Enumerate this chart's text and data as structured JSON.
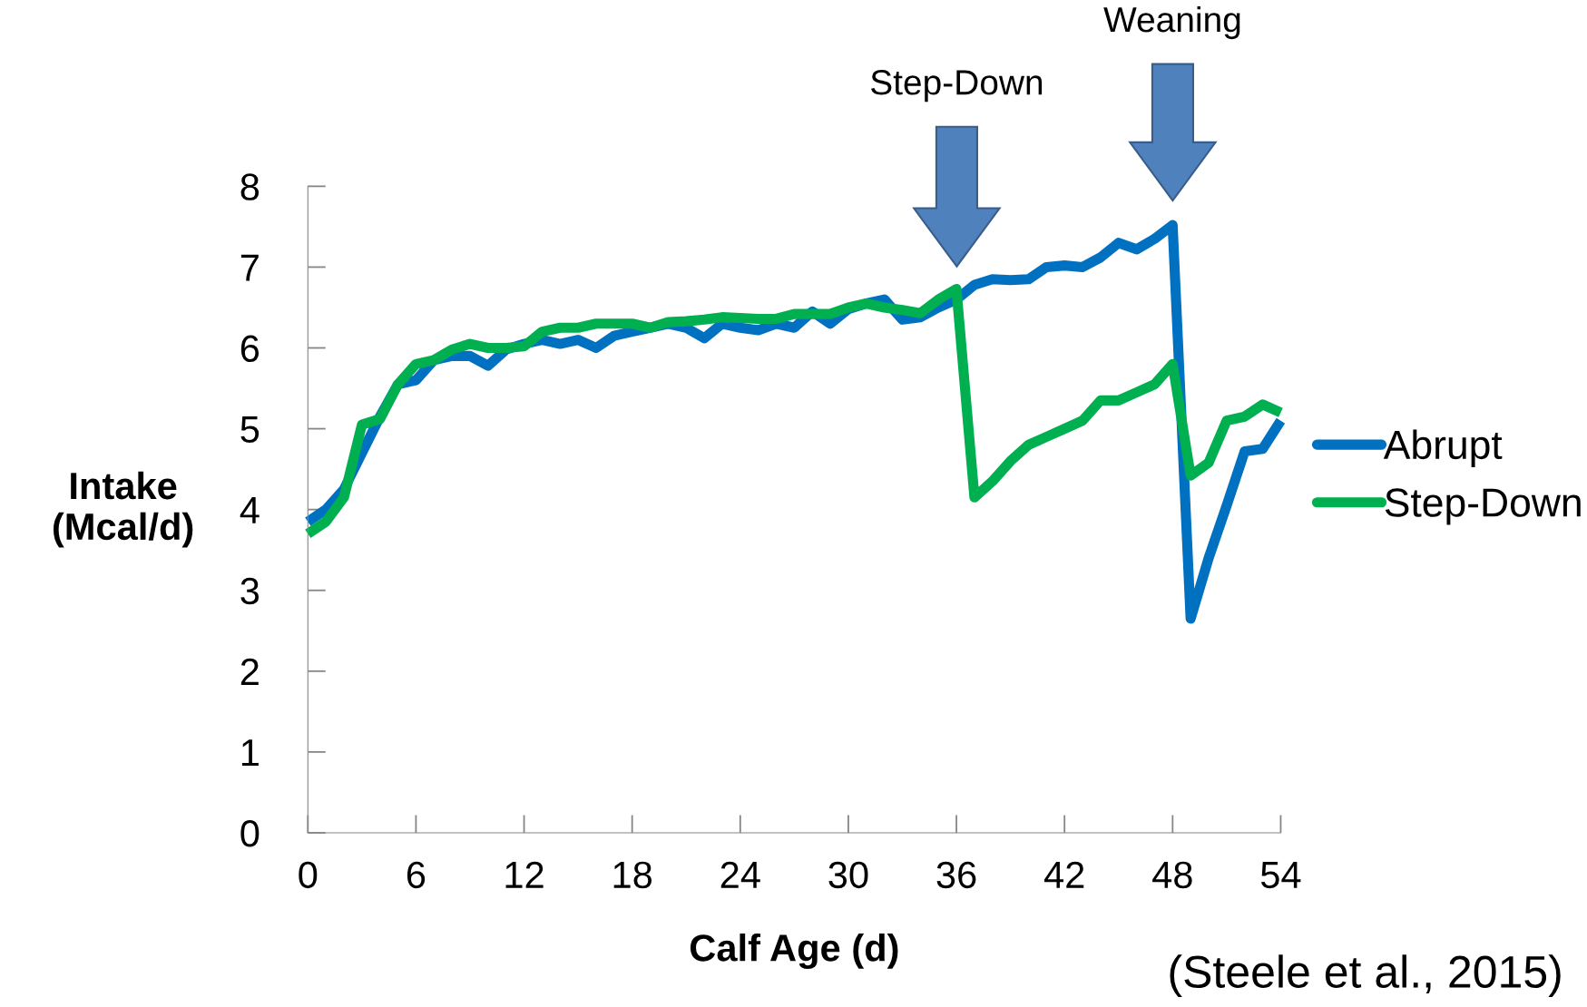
{
  "chart_data": {
    "type": "line",
    "xlabel": "Calf Age (d)",
    "ylabel": "Intake\n(Mcal/d)",
    "x": [
      0,
      1,
      2,
      3,
      4,
      5,
      6,
      7,
      8,
      9,
      10,
      11,
      12,
      13,
      14,
      15,
      16,
      17,
      18,
      19,
      20,
      21,
      22,
      23,
      24,
      25,
      26,
      27,
      28,
      29,
      30,
      31,
      32,
      33,
      34,
      35,
      36,
      37,
      38,
      39,
      40,
      41,
      42,
      43,
      44,
      45,
      46,
      47,
      48,
      49,
      50,
      51,
      52,
      53,
      54
    ],
    "series": [
      {
        "name": "Abrupt",
        "color": "#0070c0",
        "values": [
          3.85,
          4.0,
          4.25,
          4.7,
          5.15,
          5.55,
          5.6,
          5.85,
          5.9,
          5.9,
          5.78,
          5.98,
          6.05,
          6.1,
          6.05,
          6.1,
          6.0,
          6.15,
          6.2,
          6.25,
          6.3,
          6.25,
          6.12,
          6.3,
          6.25,
          6.22,
          6.3,
          6.25,
          6.45,
          6.3,
          6.48,
          6.55,
          6.6,
          6.35,
          6.38,
          6.5,
          6.6,
          6.78,
          6.85,
          6.84,
          6.85,
          7.0,
          7.02,
          7.0,
          7.12,
          7.3,
          7.22,
          7.35,
          7.52,
          2.65,
          3.4,
          4.05,
          4.72,
          4.75,
          5.1
        ]
      },
      {
        "name": "Step-Down",
        "color": "#00b050",
        "values": [
          3.7,
          3.85,
          4.15,
          5.05,
          5.12,
          5.55,
          5.8,
          5.85,
          5.98,
          6.05,
          6.0,
          6.0,
          6.02,
          6.2,
          6.25,
          6.25,
          6.3,
          6.3,
          6.3,
          6.25,
          6.32,
          6.33,
          6.35,
          6.38,
          6.37,
          6.36,
          6.36,
          6.42,
          6.42,
          6.42,
          6.5,
          6.55,
          6.5,
          6.47,
          6.43,
          6.6,
          6.73,
          4.15,
          4.35,
          4.6,
          4.8,
          4.9,
          5.0,
          5.1,
          5.35,
          5.35,
          5.45,
          5.55,
          5.8,
          4.42,
          4.58,
          5.1,
          5.15,
          5.3,
          5.2
        ]
      }
    ],
    "xlim": [
      0,
      54
    ],
    "xticks": [
      0,
      6,
      12,
      18,
      24,
      30,
      36,
      42,
      48,
      54
    ],
    "ylim": [
      0,
      8
    ],
    "yticks": [
      0,
      1,
      2,
      3,
      4,
      5,
      6,
      7,
      8
    ],
    "legend": "right",
    "marker": "none",
    "line_style": "solid",
    "grid": false,
    "annotations": [
      "Step-Down",
      "Weaning",
      "(Steele et al., 2015)"
    ]
  }
}
